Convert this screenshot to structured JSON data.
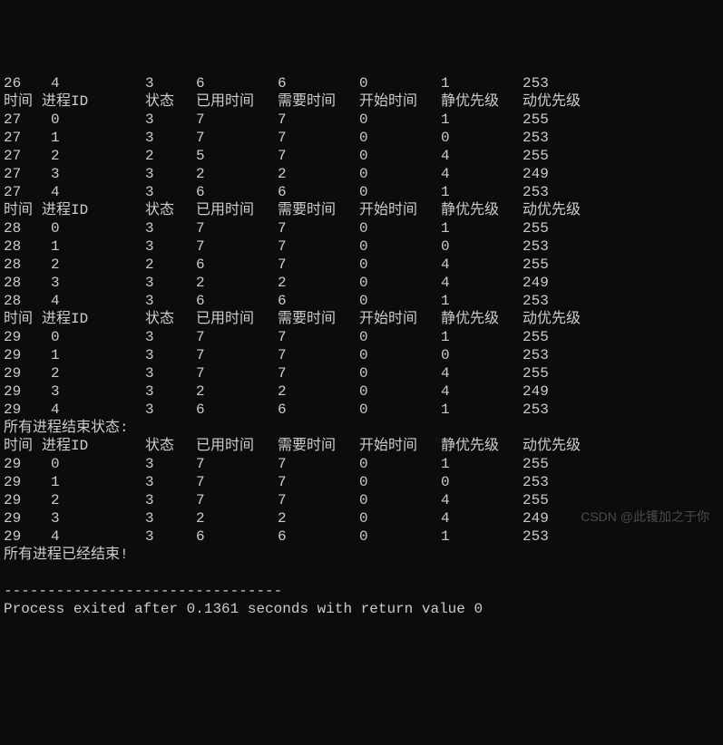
{
  "headers": {
    "time": "时间",
    "pid": "进程ID",
    "state": "状态",
    "used": "已用时间",
    "need": "需要时间",
    "start": "开始时间",
    "static_pri": "静优先级",
    "dynamic_pri": "动优先级"
  },
  "block0_toprow": [
    "26",
    "4",
    "3",
    "6",
    "6",
    "0",
    "1",
    "253"
  ],
  "block1_rows": [
    [
      "27",
      "0",
      "3",
      "7",
      "7",
      "0",
      "1",
      "255"
    ],
    [
      "27",
      "1",
      "3",
      "7",
      "7",
      "0",
      "0",
      "253"
    ],
    [
      "27",
      "2",
      "2",
      "5",
      "7",
      "0",
      "4",
      "255"
    ],
    [
      "27",
      "3",
      "3",
      "2",
      "2",
      "0",
      "4",
      "249"
    ],
    [
      "27",
      "4",
      "3",
      "6",
      "6",
      "0",
      "1",
      "253"
    ]
  ],
  "block2_rows": [
    [
      "28",
      "0",
      "3",
      "7",
      "7",
      "0",
      "1",
      "255"
    ],
    [
      "28",
      "1",
      "3",
      "7",
      "7",
      "0",
      "0",
      "253"
    ],
    [
      "28",
      "2",
      "2",
      "6",
      "7",
      "0",
      "4",
      "255"
    ],
    [
      "28",
      "3",
      "3",
      "2",
      "2",
      "0",
      "4",
      "249"
    ],
    [
      "28",
      "4",
      "3",
      "6",
      "6",
      "0",
      "1",
      "253"
    ]
  ],
  "block3_rows": [
    [
      "29",
      "0",
      "3",
      "7",
      "7",
      "0",
      "1",
      "255"
    ],
    [
      "29",
      "1",
      "3",
      "7",
      "7",
      "0",
      "0",
      "253"
    ],
    [
      "29",
      "2",
      "3",
      "7",
      "7",
      "0",
      "4",
      "255"
    ],
    [
      "29",
      "3",
      "3",
      "2",
      "2",
      "0",
      "4",
      "249"
    ],
    [
      "29",
      "4",
      "3",
      "6",
      "6",
      "0",
      "1",
      "253"
    ]
  ],
  "end_state_label": "所有进程结束状态:",
  "block4_rows": [
    [
      "29",
      "0",
      "3",
      "7",
      "7",
      "0",
      "1",
      "255"
    ],
    [
      "29",
      "1",
      "3",
      "7",
      "7",
      "0",
      "0",
      "253"
    ],
    [
      "29",
      "2",
      "3",
      "7",
      "7",
      "0",
      "4",
      "255"
    ],
    [
      "29",
      "3",
      "3",
      "2",
      "2",
      "0",
      "4",
      "249"
    ],
    [
      "29",
      "4",
      "3",
      "6",
      "6",
      "0",
      "1",
      "253"
    ]
  ],
  "all_done": "所有进程已经结束!",
  "separator": "--------------------------------",
  "exit_msg": "Process exited after 0.1361 seconds with return value 0",
  "watermark": "CSDN @此镬加之于你"
}
